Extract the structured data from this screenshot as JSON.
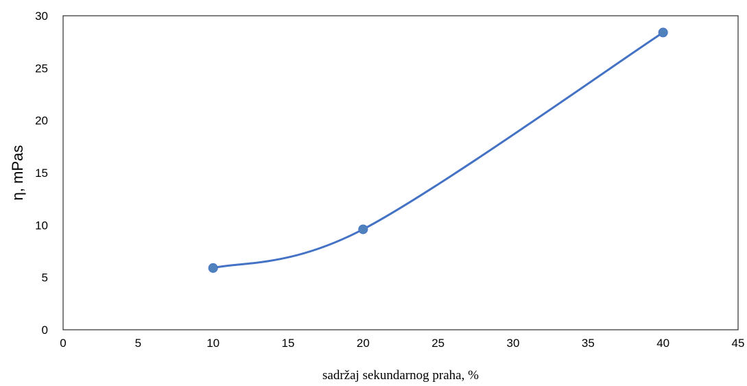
{
  "chart_data": {
    "type": "scatter",
    "title": "",
    "xlabel": "sadržaj sekundarnog praha, %",
    "ylabel": "η, mPas",
    "xlim": [
      0,
      45
    ],
    "ylim": [
      0,
      30
    ],
    "xticks": [
      0,
      5,
      10,
      15,
      20,
      25,
      30,
      35,
      40,
      45
    ],
    "yticks": [
      0,
      5,
      10,
      15,
      20,
      25,
      30
    ],
    "grid": false,
    "smooth_line": true,
    "series": [
      {
        "x": [
          10,
          20,
          40
        ],
        "y": [
          5.9,
          9.6,
          28.4
        ]
      }
    ],
    "colors": {
      "series": "#4472C4",
      "marker": "#4F81BD",
      "axis": "#000000"
    }
  }
}
